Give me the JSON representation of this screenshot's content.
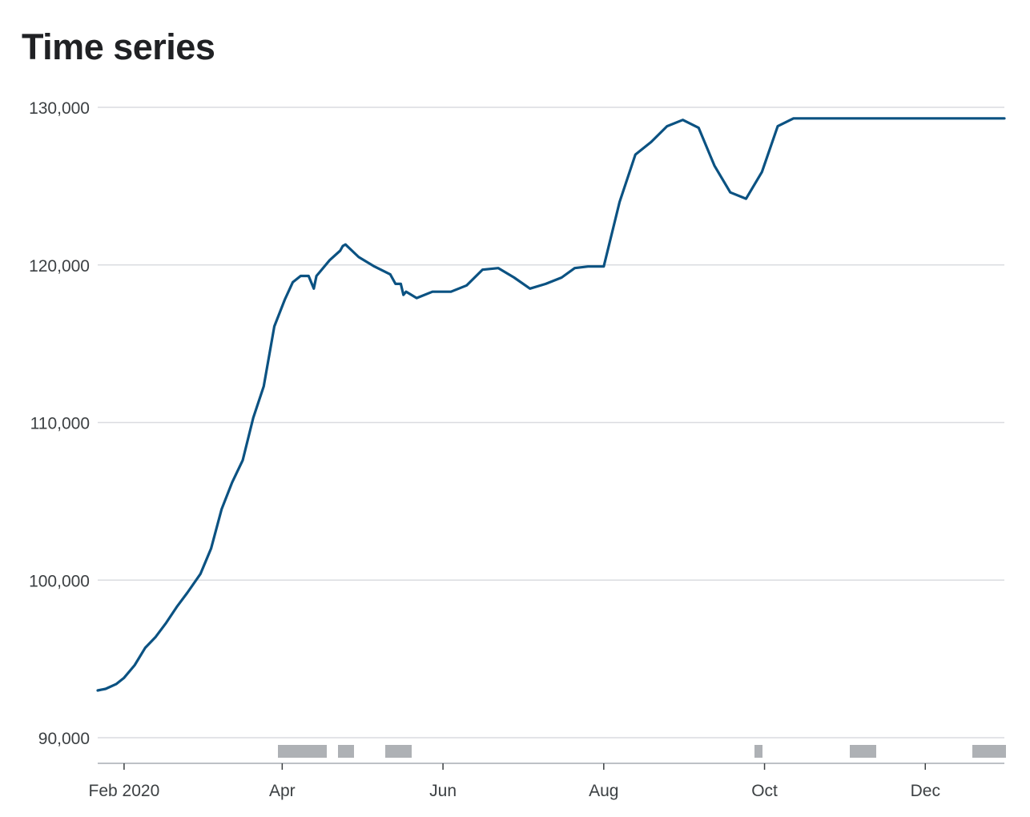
{
  "chart_data": {
    "type": "line",
    "title": "Time series",
    "xlabel": "",
    "ylabel": "",
    "ylim": [
      90000,
      130000
    ],
    "yticks": [
      90000,
      100000,
      110000,
      120000,
      130000
    ],
    "ytick_labels": [
      "90,000",
      "100,000",
      "110,000",
      "120,000",
      "130,000"
    ],
    "xlim": [
      "2020-01-22",
      "2020-12-31"
    ],
    "xticks": [
      "2020-02-01",
      "2020-04-01",
      "2020-06-01",
      "2020-08-01",
      "2020-10-01",
      "2020-12-01"
    ],
    "xtick_labels": [
      "Feb 2020",
      "Apr",
      "Jun",
      "Aug",
      "Oct",
      "Dec"
    ],
    "grid": true,
    "line_color": "#0b5282",
    "series": [
      {
        "x": [
          "2020-01-22",
          "2020-01-25",
          "2020-01-29",
          "2020-02-01",
          "2020-02-05",
          "2020-02-09",
          "2020-02-13",
          "2020-02-17",
          "2020-02-21",
          "2020-02-25",
          "2020-03-01",
          "2020-03-05",
          "2020-03-09",
          "2020-03-13",
          "2020-03-17",
          "2020-03-21",
          "2020-03-25",
          "2020-03-29",
          "2020-04-02",
          "2020-04-05",
          "2020-04-08",
          "2020-04-11",
          "2020-04-13",
          "2020-04-14",
          "2020-04-15",
          "2020-04-19",
          "2020-04-23",
          "2020-04-24",
          "2020-04-25",
          "2020-04-30",
          "2020-05-06",
          "2020-05-12",
          "2020-05-14",
          "2020-05-16",
          "2020-05-17",
          "2020-05-18",
          "2020-05-22",
          "2020-05-28",
          "2020-06-04",
          "2020-06-10",
          "2020-06-16",
          "2020-06-22",
          "2020-06-28",
          "2020-07-04",
          "2020-07-10",
          "2020-07-16",
          "2020-07-21",
          "2020-07-26",
          "2020-08-01",
          "2020-08-07",
          "2020-08-13",
          "2020-08-19",
          "2020-08-25",
          "2020-08-31",
          "2020-09-06",
          "2020-09-12",
          "2020-09-18",
          "2020-09-24",
          "2020-09-30",
          "2020-10-06",
          "2020-10-12",
          "2020-10-18",
          "2020-10-22",
          "2020-10-28",
          "2020-11-03",
          "2020-11-08",
          "2020-11-10",
          "2020-11-13",
          "2020-11-16",
          "2020-11-20",
          "2020-11-24",
          "2020-11-28",
          "2020-12-02",
          "2020-12-06",
          "2020-12-10",
          "2020-12-14",
          "2020-12-17",
          "2020-12-20",
          "2020-12-23",
          "2020-12-24",
          "2020-12-27",
          "2020-12-29",
          "2020-12-31"
        ],
        "values": [
          93000,
          93100,
          93400,
          93800,
          94600,
          95700,
          96400,
          97300,
          98300,
          99200,
          100400,
          102000,
          104500,
          106200,
          107600,
          110300,
          112300,
          116100,
          117800,
          118900,
          119300,
          119300,
          118500,
          119300,
          119500,
          120300,
          120900,
          121200,
          121300,
          120500,
          119900,
          119400,
          118800,
          118800,
          118100,
          118300,
          117900,
          118300,
          118300,
          118700,
          119700,
          119800,
          119200,
          118500,
          118800,
          119200,
          119800,
          119900,
          119900,
          124000,
          127000,
          127800,
          128800,
          129200,
          128700,
          126300,
          124600,
          124200,
          125900,
          128800,
          129300,
          129300,
          129300,
          129300,
          129300,
          129300,
          129300,
          129300,
          129300,
          129300,
          129300,
          129300,
          129300,
          129300,
          129300,
          129300,
          129300,
          129300,
          129300,
          129300,
          129300,
          129300,
          129300
        ]
      }
    ]
  }
}
